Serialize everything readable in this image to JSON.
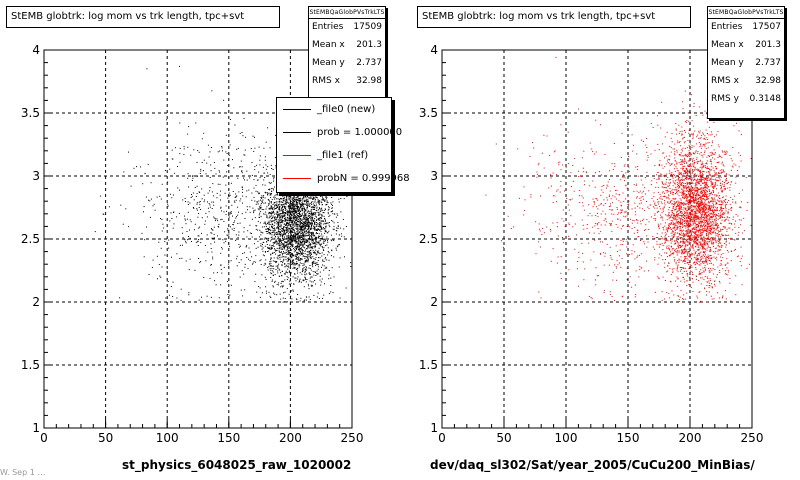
{
  "chart_data": [
    {
      "type": "scatter",
      "title": "StEMB globtrk: log mom vs trk length, tpc+svt",
      "xlabel": "st_physics_6048025_raw_1020002",
      "ylabel": "",
      "xlim": [
        0,
        250
      ],
      "ylim": [
        1,
        4
      ],
      "xticks": [
        "0",
        "50",
        "100",
        "150",
        "200",
        "250"
      ],
      "yticks": [
        "1",
        "1.5",
        "2",
        "2.5",
        "3",
        "3.5",
        "4"
      ],
      "grid": true,
      "color": "#000000",
      "stats": {
        "header": "StEMBQaGlobPVsTrkLTS",
        "rows": [
          {
            "label": "Entries",
            "value": "17509"
          },
          {
            "label": "Mean x",
            "value": "201.3"
          },
          {
            "label": "Mean y",
            "value": "2.737"
          },
          {
            "label": "RMS x",
            "value": "32.98"
          }
        ]
      },
      "legend": {
        "position": "top-right",
        "items": [
          {
            "label": "_file0 (new)",
            "color": "#000000"
          },
          {
            "label": "prob = 1.000000",
            "color": "#000000"
          },
          {
            "label": "_file1 (ref)",
            "color": "#ff0000"
          },
          {
            "label": "probN = 0.999968",
            "color": "#ff0000"
          }
        ]
      },
      "clusters": [
        {
          "x_mean": 205,
          "x_sd": 14,
          "y_mean": 2.62,
          "y_sd": 0.22,
          "weight": 0.8
        },
        {
          "x_mean": 150,
          "x_sd": 40,
          "y_mean": 2.72,
          "y_sd": 0.33,
          "weight": 0.2
        }
      ]
    },
    {
      "type": "scatter",
      "title": "StEMB globtrk: log mom vs trk length, tpc+svt",
      "xlabel": "dev/daq_sl302/Sat/year_2005/CuCu200_MinBias/",
      "ylabel": "",
      "xlim": [
        0,
        250
      ],
      "ylim": [
        1,
        4
      ],
      "xticks": [
        "0",
        "50",
        "100",
        "150",
        "200",
        "250"
      ],
      "yticks": [
        "1",
        "1.5",
        "2",
        "2.5",
        "3",
        "3.5",
        "4"
      ],
      "grid": true,
      "color": "#ff0000",
      "stats": {
        "header": "StEMBQaGlobPVsTrkLTS",
        "rows": [
          {
            "label": "Entries",
            "value": "17507"
          },
          {
            "label": "Mean x",
            "value": "201.3"
          },
          {
            "label": "Mean y",
            "value": "2.737"
          },
          {
            "label": "RMS x",
            "value": "32.98"
          },
          {
            "label": "RMS y",
            "value": "0.3148"
          }
        ]
      },
      "clusters": [
        {
          "x_mean": 205,
          "x_sd": 14,
          "y_mean": 2.72,
          "y_sd": 0.28,
          "weight": 0.8
        },
        {
          "x_mean": 150,
          "x_sd": 40,
          "y_mean": 2.72,
          "y_sd": 0.33,
          "weight": 0.2
        }
      ]
    }
  ],
  "footer": "W. Sep 1 …"
}
